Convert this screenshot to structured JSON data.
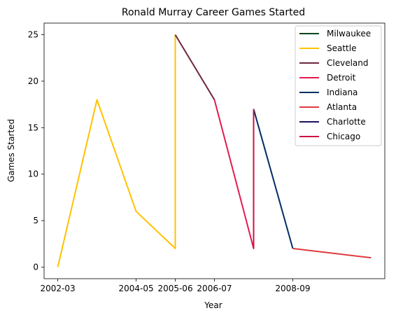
{
  "chart_data": {
    "type": "line",
    "title": "Ronald Murray Career Games Started",
    "xlabel": "Year",
    "ylabel": "Games Started",
    "x_ticks": [
      "2002-03",
      "2004-05",
      "2005-06",
      "2006-07",
      "2008-09"
    ],
    "y_ticks": [
      0,
      5,
      10,
      15,
      20,
      25
    ],
    "ylim": [
      -1.25,
      26.25
    ],
    "xlim": [
      2001.65,
      2010.35
    ],
    "grid": false,
    "legend_position": "top-right",
    "series": [
      {
        "name": "Milwaukee",
        "color": "#00471B",
        "points": [
          [
            2002.0,
            0
          ]
        ]
      },
      {
        "name": "Seattle",
        "color": "#FFC200",
        "points": [
          [
            2002.0,
            0
          ],
          [
            2003.0,
            18
          ],
          [
            2004.0,
            6
          ],
          [
            2005.0,
            2
          ],
          [
            2005.0,
            25
          ]
        ]
      },
      {
        "name": "Cleveland",
        "color": "#6F263D",
        "points": [
          [
            2005.0,
            25
          ],
          [
            2006.0,
            18
          ]
        ]
      },
      {
        "name": "Detroit",
        "color": "#E31B4F",
        "points": [
          [
            2006.0,
            18
          ],
          [
            2007.0,
            2
          ],
          [
            2007.0,
            17
          ]
        ]
      },
      {
        "name": "Indiana",
        "color": "#002D62",
        "points": [
          [
            2007.0,
            17
          ],
          [
            2008.0,
            2
          ]
        ]
      },
      {
        "name": "Atlanta",
        "color": "#E03A3E",
        "points": [
          [
            2008.0,
            2
          ],
          [
            2010.0,
            1
          ]
        ]
      },
      {
        "name": "Charlotte",
        "color": "#1D1160",
        "points": [
          [
            2008.0,
            2
          ]
        ]
      },
      {
        "name": "Chicago",
        "color": "#CE1141",
        "points": [
          [
            2007.0,
            2
          ],
          [
            2007.0,
            17
          ]
        ]
      }
    ]
  }
}
